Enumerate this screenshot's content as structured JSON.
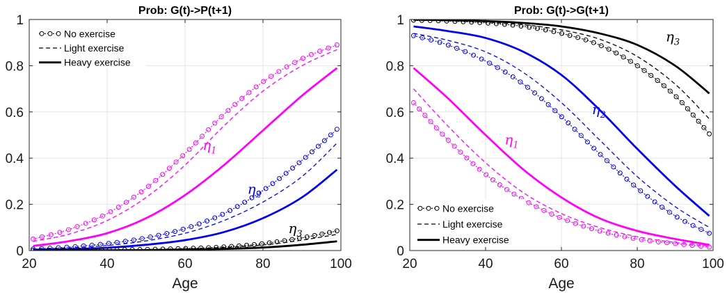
{
  "colors": {
    "eta1": "#ff00ff",
    "eta2": "#0000ee",
    "eta3": "#000000"
  },
  "legend_entries": [
    "No exercise",
    "Light exercise",
    "Heavy exercise"
  ],
  "chart_data": [
    {
      "type": "line",
      "title": "Prob: G(t)->P(t+1)",
      "xlabel": "Age",
      "ylabel": "",
      "xlim": [
        20,
        100
      ],
      "ylim": [
        0,
        1
      ],
      "xticks": [
        "20",
        "40",
        "60",
        "80",
        "100"
      ],
      "yticks": [
        "0",
        "0.2",
        "0.4",
        "0.6",
        "0.8",
        "1"
      ],
      "grid": true,
      "legend_position": "top-left",
      "curve_labels": [
        {
          "group": "eta1",
          "label": "η",
          "sub": "1",
          "x": 64.5,
          "y": 0.435
        },
        {
          "group": "eta2",
          "label": "η",
          "sub": "2",
          "x": 76,
          "y": 0.245
        },
        {
          "group": "eta3",
          "label": "η",
          "sub": "3",
          "x": 86.5,
          "y": 0.075
        }
      ],
      "series": [
        {
          "group": "eta1",
          "style": "no-exercise",
          "x": [
            21,
            30,
            40,
            50,
            60,
            70,
            80,
            90,
            99
          ],
          "y": [
            0.05,
            0.09,
            0.16,
            0.27,
            0.42,
            0.59,
            0.73,
            0.83,
            0.89
          ]
        },
        {
          "group": "eta1",
          "style": "light-exercise",
          "x": [
            21,
            30,
            40,
            50,
            60,
            70,
            80,
            90,
            99
          ],
          "y": [
            0.04,
            0.07,
            0.13,
            0.23,
            0.37,
            0.54,
            0.69,
            0.8,
            0.87
          ]
        },
        {
          "group": "eta1",
          "style": "heavy-exercise",
          "x": [
            21,
            30,
            40,
            50,
            60,
            70,
            80,
            90,
            99
          ],
          "y": [
            0.02,
            0.04,
            0.075,
            0.14,
            0.24,
            0.37,
            0.52,
            0.67,
            0.79
          ]
        },
        {
          "group": "eta2",
          "style": "no-exercise",
          "x": [
            21,
            30,
            40,
            50,
            60,
            70,
            80,
            90,
            99
          ],
          "y": [
            0.007,
            0.015,
            0.03,
            0.055,
            0.095,
            0.16,
            0.26,
            0.39,
            0.525
          ]
        },
        {
          "group": "eta2",
          "style": "light-exercise",
          "x": [
            21,
            30,
            40,
            50,
            60,
            70,
            80,
            90,
            99
          ],
          "y": [
            0.005,
            0.011,
            0.022,
            0.042,
            0.075,
            0.13,
            0.21,
            0.32,
            0.465
          ]
        },
        {
          "group": "eta2",
          "style": "heavy-exercise",
          "x": [
            21,
            30,
            40,
            50,
            60,
            70,
            80,
            90,
            99
          ],
          "y": [
            0.003,
            0.006,
            0.012,
            0.025,
            0.045,
            0.08,
            0.14,
            0.23,
            0.35
          ]
        },
        {
          "group": "eta3",
          "style": "no-exercise",
          "x": [
            21,
            30,
            40,
            50,
            60,
            70,
            80,
            90,
            99
          ],
          "y": [
            0.001,
            0.002,
            0.003,
            0.005,
            0.009,
            0.016,
            0.03,
            0.055,
            0.085
          ]
        },
        {
          "group": "eta3",
          "style": "light-exercise",
          "x": [
            21,
            30,
            40,
            50,
            60,
            70,
            80,
            90,
            99
          ],
          "y": [
            0.001,
            0.001,
            0.002,
            0.004,
            0.007,
            0.013,
            0.024,
            0.045,
            0.07
          ]
        },
        {
          "group": "eta3",
          "style": "heavy-exercise",
          "x": [
            21,
            30,
            40,
            50,
            60,
            70,
            80,
            90,
            99
          ],
          "y": [
            0.0,
            0.001,
            0.001,
            0.002,
            0.004,
            0.007,
            0.013,
            0.025,
            0.04
          ]
        }
      ]
    },
    {
      "type": "line",
      "title": "Prob: G(t)->G(t+1)",
      "xlabel": "Age",
      "ylabel": "",
      "xlim": [
        20,
        100
      ],
      "ylim": [
        0,
        1
      ],
      "xticks": [
        "20",
        "40",
        "60",
        "80",
        "100"
      ],
      "yticks": [
        "0",
        "0.2",
        "0.4",
        "0.6",
        "0.8",
        "1"
      ],
      "grid": true,
      "legend_position": "bottom-left",
      "curve_labels": [
        {
          "group": "eta1",
          "label": "η",
          "sub": "1",
          "x": 45,
          "y": 0.46
        },
        {
          "group": "eta2",
          "label": "η",
          "sub": "2",
          "x": 68,
          "y": 0.59
        },
        {
          "group": "eta3",
          "label": "η",
          "sub": "3",
          "x": 87.5,
          "y": 0.905
        }
      ],
      "series": [
        {
          "group": "eta1",
          "style": "no-exercise",
          "x": [
            21,
            30,
            40,
            50,
            60,
            70,
            80,
            90,
            99
          ],
          "y": [
            0.64,
            0.48,
            0.33,
            0.22,
            0.14,
            0.085,
            0.05,
            0.03,
            0.015
          ]
        },
        {
          "group": "eta1",
          "style": "light-exercise",
          "x": [
            21,
            30,
            40,
            50,
            60,
            70,
            80,
            90,
            99
          ],
          "y": [
            0.7,
            0.54,
            0.38,
            0.25,
            0.16,
            0.1,
            0.06,
            0.035,
            0.02
          ]
        },
        {
          "group": "eta1",
          "style": "heavy-exercise",
          "x": [
            21,
            30,
            40,
            50,
            60,
            70,
            80,
            90,
            99
          ],
          "y": [
            0.79,
            0.66,
            0.5,
            0.35,
            0.23,
            0.14,
            0.085,
            0.05,
            0.025
          ]
        },
        {
          "group": "eta2",
          "style": "no-exercise",
          "x": [
            21,
            30,
            40,
            50,
            60,
            70,
            80,
            90,
            99
          ],
          "y": [
            0.93,
            0.89,
            0.82,
            0.72,
            0.58,
            0.42,
            0.27,
            0.15,
            0.075
          ]
        },
        {
          "group": "eta2",
          "style": "light-exercise",
          "x": [
            21,
            30,
            40,
            50,
            60,
            70,
            80,
            90,
            99
          ],
          "y": [
            0.94,
            0.91,
            0.86,
            0.77,
            0.64,
            0.48,
            0.32,
            0.19,
            0.1
          ]
        },
        {
          "group": "eta2",
          "style": "heavy-exercise",
          "x": [
            21,
            30,
            40,
            50,
            60,
            70,
            80,
            90,
            99
          ],
          "y": [
            0.97,
            0.95,
            0.92,
            0.86,
            0.76,
            0.61,
            0.44,
            0.28,
            0.15
          ]
        },
        {
          "group": "eta3",
          "style": "no-exercise",
          "x": [
            21,
            30,
            40,
            50,
            60,
            70,
            80,
            90,
            99
          ],
          "y": [
            0.997,
            0.993,
            0.985,
            0.97,
            0.94,
            0.89,
            0.8,
            0.67,
            0.505
          ]
        },
        {
          "group": "eta3",
          "style": "light-exercise",
          "x": [
            21,
            30,
            40,
            50,
            60,
            70,
            80,
            90,
            99
          ],
          "y": [
            0.998,
            0.995,
            0.989,
            0.977,
            0.955,
            0.915,
            0.84,
            0.72,
            0.57
          ]
        },
        {
          "group": "eta3",
          "style": "heavy-exercise",
          "x": [
            21,
            30,
            40,
            50,
            60,
            70,
            80,
            90,
            99
          ],
          "y": [
            0.999,
            0.997,
            0.993,
            0.985,
            0.97,
            0.94,
            0.89,
            0.8,
            0.68
          ]
        }
      ]
    }
  ]
}
